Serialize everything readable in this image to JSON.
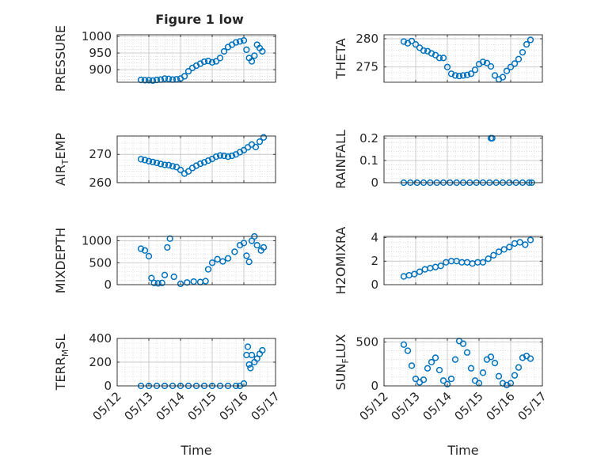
{
  "figure": {
    "title": "Figure 1 low",
    "marker_color": "#0072BD",
    "axis_color": "#262626",
    "grid_color": "#c8c8c8"
  },
  "chart_data": [
    {
      "type": "scatter",
      "panel": "left-1",
      "ylabel_parts": [
        "PRESSURE"
      ],
      "yticks": [
        900,
        950,
        1000
      ],
      "ylim": [
        862,
        1005
      ],
      "xlim": [
        "05/12",
        "05/17"
      ],
      "xtick_labels": [],
      "x": [
        "05/12 18:00",
        "05/12 21:00",
        "05/13 00:00",
        "05/13 03:00",
        "05/13 06:00",
        "05/13 09:00",
        "05/13 12:00",
        "05/13 15:00",
        "05/13 18:00",
        "05/13 21:00",
        "05/14 00:00",
        "05/14 03:00",
        "05/14 06:00",
        "05/14 09:00",
        "05/14 12:00",
        "05/14 15:00",
        "05/14 18:00",
        "05/14 21:00",
        "05/15 00:00",
        "05/15 03:00",
        "05/15 06:00",
        "05/15 09:00",
        "05/15 12:00",
        "05/15 15:00",
        "05/15 18:00",
        "05/15 21:00",
        "05/16 00:00",
        "05/16 02:00",
        "05/16 04:00",
        "05/16 06:00",
        "05/16 08:00",
        "05/16 10:00",
        "05/16 12:00",
        "05/16 14:00"
      ],
      "y": [
        869,
        868,
        868,
        867,
        869,
        870,
        873,
        872,
        870,
        871,
        873,
        880,
        895,
        905,
        912,
        918,
        924,
        926,
        922,
        925,
        935,
        955,
        968,
        975,
        982,
        985,
        988,
        960,
        935,
        925,
        942,
        975,
        965,
        955
      ]
    },
    {
      "type": "scatter",
      "panel": "right-1",
      "ylabel_parts": [
        "THETA"
      ],
      "yticks": [
        275,
        280
      ],
      "ylim": [
        272.3,
        280.7
      ],
      "xlim": [
        "05/12",
        "05/17"
      ],
      "xtick_labels": [],
      "x": [
        "05/12 15:00",
        "05/12 18:00",
        "05/12 21:00",
        "05/13 00:00",
        "05/13 03:00",
        "05/13 06:00",
        "05/13 09:00",
        "05/13 12:00",
        "05/13 15:00",
        "05/13 18:00",
        "05/13 21:00",
        "05/14 00:00",
        "05/14 03:00",
        "05/14 06:00",
        "05/14 09:00",
        "05/14 12:00",
        "05/14 15:00",
        "05/14 18:00",
        "05/14 21:00",
        "05/15 00:00",
        "05/15 03:00",
        "05/15 06:00",
        "05/15 09:00",
        "05/15 12:00",
        "05/15 15:00",
        "05/15 18:00",
        "05/15 21:00",
        "05/16 00:00",
        "05/16 03:00",
        "05/16 06:00",
        "05/16 09:00",
        "05/16 12:00",
        "05/16 15:00"
      ],
      "y": [
        279.5,
        279.2,
        279.6,
        279.0,
        278.4,
        277.9,
        277.8,
        277.4,
        277.1,
        276.6,
        276.6,
        275.0,
        273.8,
        273.5,
        273.4,
        273.5,
        273.6,
        273.8,
        274.5,
        275.5,
        275.9,
        275.7,
        275.1,
        273.5,
        272.8,
        273.2,
        274.3,
        275.0,
        275.6,
        276.4,
        277.6,
        279.0,
        279.8
      ]
    },
    {
      "type": "scatter",
      "panel": "left-2",
      "ylabel_parts": [
        "AIR",
        "T",
        "EMP"
      ],
      "yticks": [
        260,
        270
      ],
      "ylim": [
        260,
        276.5
      ],
      "xlim": [
        "05/12",
        "05/17"
      ],
      "xtick_labels": [],
      "x": [
        "05/12 18:00",
        "05/12 21:00",
        "05/13 00:00",
        "05/13 03:00",
        "05/13 06:00",
        "05/13 09:00",
        "05/13 12:00",
        "05/13 15:00",
        "05/13 18:00",
        "05/13 21:00",
        "05/14 00:00",
        "05/14 03:00",
        "05/14 06:00",
        "05/14 09:00",
        "05/14 12:00",
        "05/14 15:00",
        "05/14 18:00",
        "05/14 21:00",
        "05/15 00:00",
        "05/15 03:00",
        "05/15 06:00",
        "05/15 09:00",
        "05/15 12:00",
        "05/15 15:00",
        "05/15 18:00",
        "05/15 21:00",
        "05/16 00:00",
        "05/16 03:00",
        "05/16 06:00",
        "05/16 09:00",
        "05/16 12:00",
        "05/16 15:00"
      ],
      "y": [
        268.3,
        268.0,
        267.6,
        267.3,
        267.0,
        266.6,
        266.3,
        266.2,
        265.8,
        265.5,
        264.5,
        263.2,
        264.0,
        265.2,
        266.0,
        266.7,
        267.2,
        267.8,
        268.4,
        269.2,
        269.6,
        269.5,
        269.2,
        269.5,
        270.0,
        270.8,
        271.5,
        272.5,
        273.5,
        272.6,
        274.5,
        276.0
      ]
    },
    {
      "type": "scatter",
      "panel": "right-2",
      "ylabel_parts": [
        "RAINFALL"
      ],
      "yticks": [
        0,
        0.1,
        0.2
      ],
      "ytick_labels": [
        "0",
        "0.1",
        "0.2"
      ],
      "ylim": [
        0,
        0.21
      ],
      "xlim": [
        "05/12",
        "05/17"
      ],
      "xtick_labels": [],
      "x": [
        "05/12 15:00",
        "05/12 20:00",
        "05/13 01:00",
        "05/13 06:00",
        "05/13 11:00",
        "05/13 16:00",
        "05/13 21:00",
        "05/14 02:00",
        "05/14 07:00",
        "05/14 12:00",
        "05/14 17:00",
        "05/14 22:00",
        "05/15 03:00",
        "05/15 08:00",
        "05/15 09:00",
        "05/15 10:00",
        "05/15 13:00",
        "05/15 18:00",
        "05/15 23:00",
        "05/16 04:00",
        "05/16 09:00",
        "05/16 14:00",
        "05/16 16:00"
      ],
      "y": [
        0,
        0,
        0,
        0,
        0,
        0,
        0,
        0,
        0,
        0,
        0,
        0,
        0,
        0,
        0.2,
        0.2,
        0,
        0,
        0,
        0,
        0,
        0,
        0
      ]
    },
    {
      "type": "scatter",
      "panel": "left-3",
      "ylabel_parts": [
        "MIXDEPTH"
      ],
      "yticks": [
        0,
        500,
        1000
      ],
      "ylim": [
        0,
        1100
      ],
      "xlim": [
        "05/12",
        "05/17"
      ],
      "xtick_labels": [],
      "x": [
        "05/12 18:00",
        "05/12 21:00",
        "05/13 00:00",
        "05/13 02:00",
        "05/13 04:00",
        "05/13 07:00",
        "05/13 10:00",
        "05/13 12:00",
        "05/13 14:00",
        "05/13 16:00",
        "05/13 19:00",
        "05/14 00:00",
        "05/14 05:00",
        "05/14 10:00",
        "05/14 15:00",
        "05/14 19:00",
        "05/14 21:00",
        "05/15 00:00",
        "05/15 04:00",
        "05/15 08:00",
        "05/15 12:00",
        "05/15 17:00",
        "05/15 21:00",
        "05/16 00:00",
        "05/16 02:00",
        "05/16 04:00",
        "05/16 06:00",
        "05/16 08:00",
        "05/16 10:00",
        "05/16 13:00",
        "05/16 15:00"
      ],
      "y": [
        820,
        780,
        650,
        150,
        40,
        30,
        40,
        220,
        850,
        1050,
        180,
        20,
        50,
        70,
        60,
        80,
        350,
        500,
        580,
        530,
        600,
        750,
        900,
        950,
        660,
        520,
        1000,
        1100,
        900,
        780,
        850
      ]
    },
    {
      "type": "scatter",
      "panel": "right-3",
      "ylabel_parts": [
        "H2OMIXRA"
      ],
      "yticks": [
        0,
        2,
        4
      ],
      "ylim": [
        0,
        4.1
      ],
      "xlim": [
        "05/12",
        "05/17"
      ],
      "xtick_labels": [],
      "x": [
        "05/12 15:00",
        "05/12 19:00",
        "05/12 23:00",
        "05/13 03:00",
        "05/13 07:00",
        "05/13 11:00",
        "05/13 15:00",
        "05/13 19:00",
        "05/13 23:00",
        "05/14 03:00",
        "05/14 07:00",
        "05/14 11:00",
        "05/14 15:00",
        "05/14 19:00",
        "05/14 23:00",
        "05/15 03:00",
        "05/15 07:00",
        "05/15 11:00",
        "05/15 15:00",
        "05/15 19:00",
        "05/15 23:00",
        "05/16 03:00",
        "05/16 07:00",
        "05/16 11:00",
        "05/16 15:00"
      ],
      "y": [
        0.7,
        0.8,
        0.9,
        1.1,
        1.3,
        1.4,
        1.5,
        1.6,
        1.9,
        2.0,
        2.0,
        1.9,
        1.9,
        1.8,
        1.9,
        1.9,
        2.2,
        2.5,
        2.8,
        3.0,
        3.2,
        3.5,
        3.6,
        3.4,
        3.8
      ]
    },
    {
      "type": "scatter",
      "panel": "left-4",
      "ylabel_parts": [
        "TERR",
        "M",
        "SL"
      ],
      "yticks": [
        0,
        200,
        400
      ],
      "ylim": [
        0,
        400
      ],
      "xlim": [
        "05/12",
        "05/17"
      ],
      "xtick_labels": [
        "05/12",
        "05/13",
        "05/14",
        "05/15",
        "05/16",
        "05/17"
      ],
      "xlabel": "Time",
      "x": [
        "05/12 18:00",
        "05/13 00:00",
        "05/13 06:00",
        "05/13 12:00",
        "05/13 18:00",
        "05/14 00:00",
        "05/14 06:00",
        "05/14 12:00",
        "05/14 18:00",
        "05/15 00:00",
        "05/15 06:00",
        "05/15 12:00",
        "05/15 18:00",
        "05/15 21:00",
        "05/16 00:00",
        "05/16 02:00",
        "05/16 03:00",
        "05/16 04:00",
        "05/16 05:00",
        "05/16 06:00",
        "05/16 08:00",
        "05/16 10:00",
        "05/16 12:00",
        "05/16 14:00"
      ],
      "y": [
        0,
        0,
        0,
        0,
        0,
        0,
        0,
        0,
        0,
        0,
        0,
        0,
        0,
        0,
        20,
        260,
        330,
        180,
        150,
        260,
        200,
        230,
        270,
        300
      ]
    },
    {
      "type": "scatter",
      "panel": "right-4",
      "ylabel_parts": [
        "SUN",
        "F",
        "LUX"
      ],
      "yticks": [
        0,
        500
      ],
      "ylim": [
        0,
        540
      ],
      "xlim": [
        "05/12",
        "05/17"
      ],
      "xtick_labels": [
        "05/12",
        "05/13",
        "05/14",
        "05/15",
        "05/16",
        "05/17"
      ],
      "xlabel": "Time",
      "x": [
        "05/12 15:00",
        "05/12 18:00",
        "05/12 21:00",
        "05/13 00:00",
        "05/13 03:00",
        "05/13 06:00",
        "05/13 09:00",
        "05/13 12:00",
        "05/13 15:00",
        "05/13 18:00",
        "05/13 21:00",
        "05/14 00:00",
        "05/14 03:00",
        "05/14 06:00",
        "05/14 09:00",
        "05/14 12:00",
        "05/14 15:00",
        "05/14 18:00",
        "05/14 21:00",
        "05/15 00:00",
        "05/15 03:00",
        "05/15 06:00",
        "05/15 09:00",
        "05/15 12:00",
        "05/15 15:00",
        "05/15 18:00",
        "05/15 21:00",
        "05/16 00:00",
        "05/16 03:00",
        "05/16 06:00",
        "05/16 09:00",
        "05/16 12:00",
        "05/16 15:00"
      ],
      "y": [
        470,
        400,
        230,
        80,
        40,
        70,
        200,
        270,
        320,
        180,
        60,
        20,
        80,
        300,
        510,
        480,
        380,
        200,
        60,
        30,
        150,
        300,
        330,
        260,
        110,
        30,
        10,
        30,
        120,
        210,
        320,
        340,
        310
      ]
    }
  ]
}
